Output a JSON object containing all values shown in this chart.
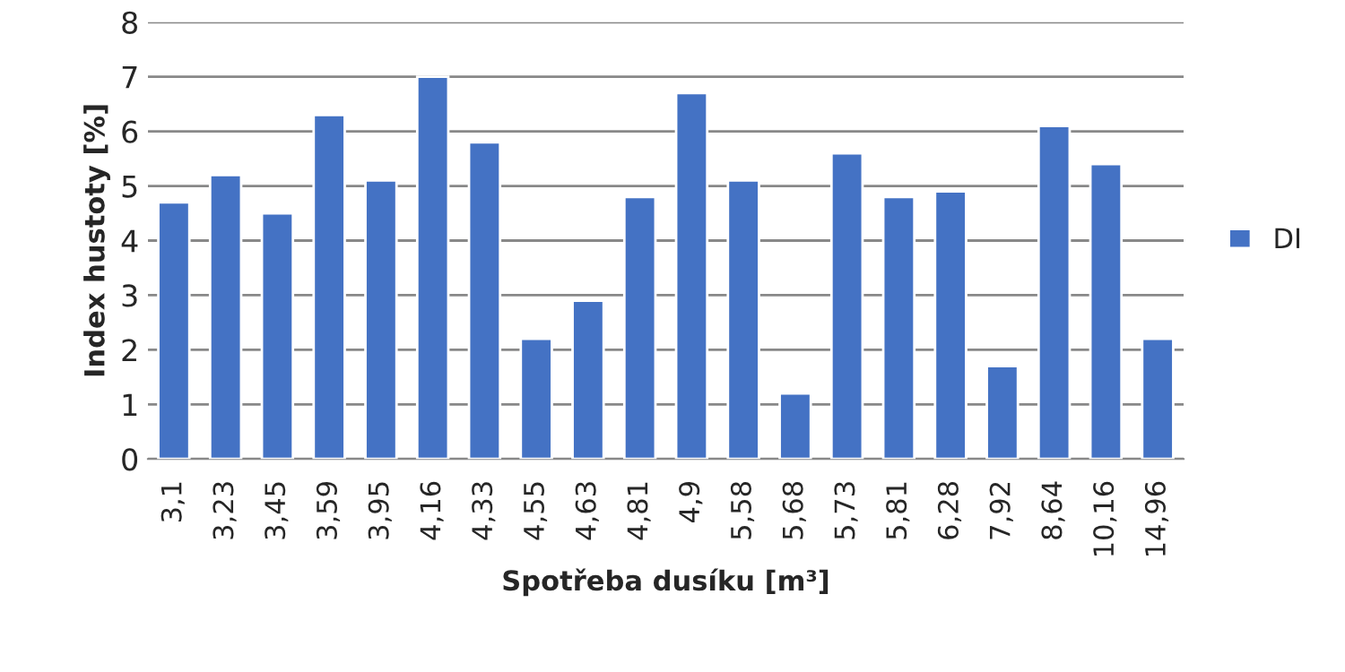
{
  "chart_data": {
    "type": "bar",
    "xlabel": "Spotřeba dusíku [m³]",
    "ylabel": "Index hustoty [%]",
    "categories": [
      "3,1",
      "3,23",
      "3,45",
      "3,59",
      "3,95",
      "4,16",
      "4,33",
      "4,55",
      "4,63",
      "4,81",
      "4,9",
      "5,58",
      "5,68",
      "5,73",
      "5,81",
      "6,28",
      "7,92",
      "8,64",
      "10,16",
      "14,96"
    ],
    "series": [
      {
        "name": "DI",
        "color": "#4472c4",
        "values": [
          4.7,
          5.2,
          4.5,
          6.3,
          5.1,
          7.0,
          5.8,
          2.2,
          2.9,
          4.8,
          6.7,
          5.1,
          1.2,
          5.6,
          4.8,
          4.9,
          1.7,
          6.1,
          5.4,
          2.2
        ]
      }
    ],
    "ylim": [
      0,
      8
    ],
    "yticks": [
      0,
      1,
      2,
      3,
      4,
      5,
      6,
      7,
      8
    ],
    "grid": "y",
    "legend": "right"
  }
}
